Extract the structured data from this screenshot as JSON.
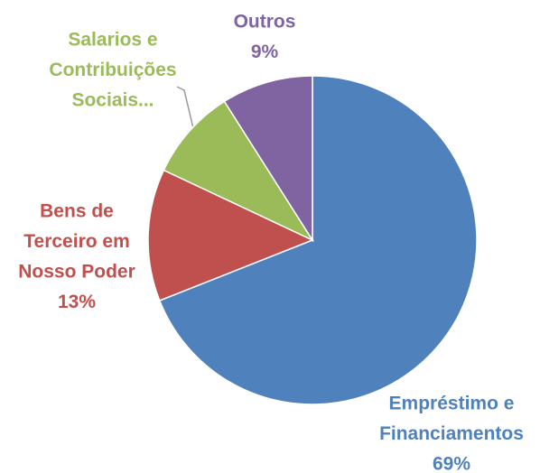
{
  "chart_data": {
    "type": "pie",
    "categories": [
      [
        "Empréstimo e",
        "Financiamentos"
      ],
      [
        "Bens de",
        "Terceiro em",
        "Nosso Poder"
      ],
      [
        "Salarios e",
        "Contribuições",
        "Sociais..."
      ],
      [
        "Outros"
      ]
    ],
    "values": [
      69,
      13,
      9,
      9
    ],
    "value_labels": [
      "69%",
      "13%",
      null,
      "9%"
    ],
    "colors": [
      "#4f81bd",
      "#c0504d",
      "#9bbb59",
      "#8064a2"
    ]
  }
}
